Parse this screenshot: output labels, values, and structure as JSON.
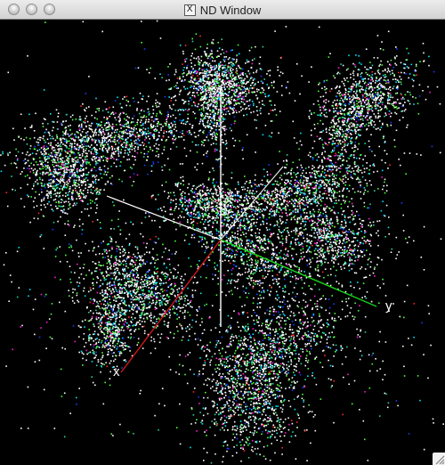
{
  "window": {
    "title": "ND Window",
    "x11_glyph": "X"
  },
  "icons": {
    "title_icon": "x11-window-icon",
    "resize": "resize-grip-icon"
  },
  "plot": {
    "axis_labels": {
      "x": "x",
      "y": "y"
    },
    "point_colors": [
      "#ffffff",
      "#00e5ff",
      "#2fd0a0",
      "#4cff3a",
      "#1a3cff",
      "#ff1ad6",
      "#ff2a2a"
    ],
    "axis_colors": {
      "x": "#d11a1a",
      "y": "#19d11a",
      "vertical": "#ffffff",
      "depth": "#ffffff"
    }
  }
}
